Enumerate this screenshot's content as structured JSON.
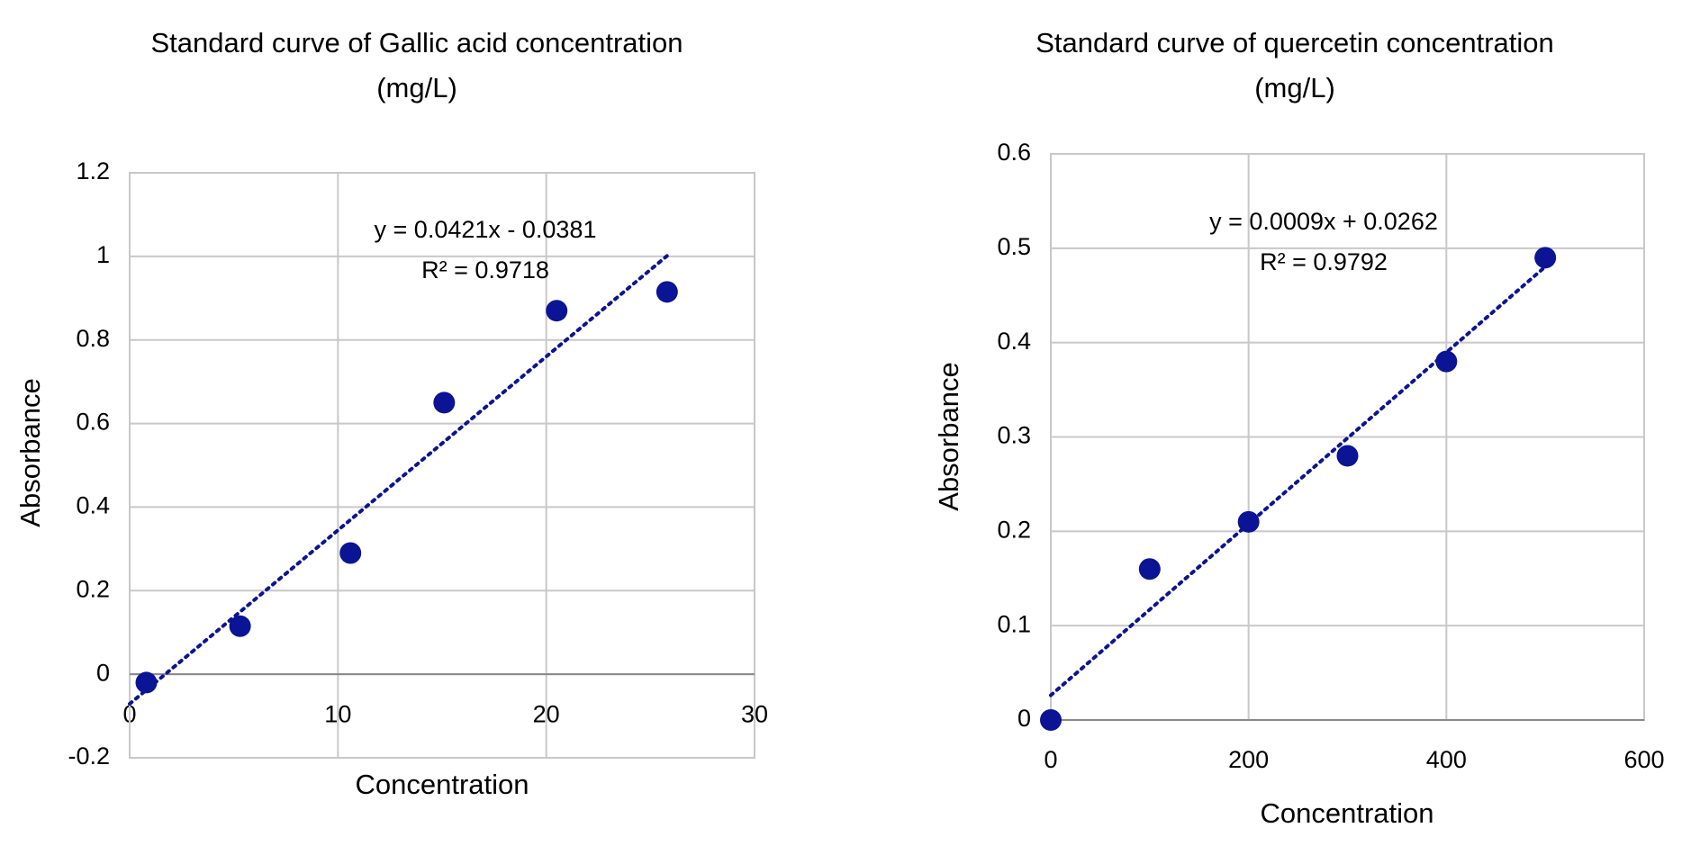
{
  "chart_data": [
    {
      "type": "scatter",
      "title": [
        "Standard curve of Gallic acid concentration",
        "(mg/L)"
      ],
      "x_label": "Concentration",
      "y_label": "Absorbance",
      "x": [
        0.8,
        5.3,
        10.6,
        15.1,
        20.5,
        25.8
      ],
      "values": [
        -0.02,
        0.115,
        0.29,
        0.65,
        0.87,
        0.915
      ],
      "color": "#0a1494",
      "trendline": {
        "equation": "y = 0.0421x - 0.0381",
        "r_squared": "R² = 0.9718"
      },
      "xlim": [
        0,
        30
      ],
      "xticks": [
        0,
        10,
        20,
        30
      ],
      "ylim": [
        -0.2,
        1.2
      ],
      "yticks": [
        -0.2,
        0,
        0.2,
        0.4,
        0.6,
        0.8,
        1,
        1.2
      ],
      "grid": true
    },
    {
      "type": "scatter",
      "title": [
        "Standard curve of quercetin concentration",
        "(mg/L)"
      ],
      "x_label": "Concentration",
      "y_label": "Absorbance",
      "x": [
        0,
        100,
        200,
        300,
        400,
        500
      ],
      "values": [
        0,
        0.16,
        0.21,
        0.28,
        0.38,
        0.49
      ],
      "color": "#0a1494",
      "trendline": {
        "equation": "y = 0.0009x + 0.0262",
        "r_squared": "R² = 0.9792"
      },
      "xlim": [
        0,
        600
      ],
      "xticks": [
        0,
        200,
        400,
        600
      ],
      "ylim": [
        0,
        0.6
      ],
      "yticks": [
        0,
        0.1,
        0.2,
        0.3,
        0.4,
        0.5,
        0.6
      ],
      "grid": true
    }
  ]
}
